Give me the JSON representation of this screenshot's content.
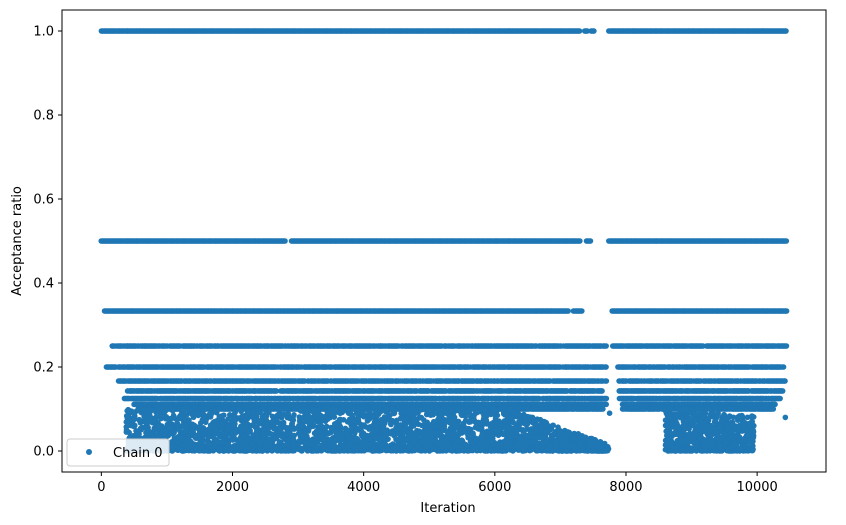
{
  "chart_data": {
    "type": "scatter",
    "xlabel": "Iteration",
    "ylabel": "Acceptance ratio",
    "xlim": [
      -600,
      11050
    ],
    "ylim": [
      -0.05,
      1.05
    ],
    "xticks": [
      0,
      2000,
      4000,
      6000,
      8000,
      10000
    ],
    "xtick_labels": [
      "0",
      "2000",
      "4000",
      "6000",
      "8000",
      "10000"
    ],
    "yticks": [
      0.0,
      0.2,
      0.4,
      0.6,
      0.8,
      1.0
    ],
    "ytick_labels": [
      "0.0",
      "0.2",
      "0.4",
      "0.6",
      "0.8",
      "1.0"
    ],
    "grid": false,
    "legend": {
      "placement": "lower-left",
      "entries": [
        "Chain 0"
      ]
    },
    "marker_color": "#1f77b4",
    "series": [
      {
        "name": "Chain 0",
        "bands": [
          {
            "y": 1.0,
            "segments": [
              [
                0,
                7300
              ],
              [
                7370,
                7420
              ],
              [
                7470,
                7520
              ],
              [
                7740,
                10450
              ]
            ]
          },
          {
            "y": 0.5,
            "segments": [
              [
                0,
                2800
              ],
              [
                2900,
                7300
              ],
              [
                7400,
                7460
              ],
              [
                7740,
                10450
              ]
            ]
          },
          {
            "y": 0.3333,
            "segments": [
              [
                50,
                7120
              ],
              [
                7200,
                7330
              ],
              [
                7790,
                10450
              ]
            ]
          },
          {
            "y": 0.25,
            "segments": [
              [
                150,
                7700
              ],
              [
                7800,
                10450
              ]
            ]
          },
          {
            "y": 0.2,
            "segments": [
              [
                80,
                7700
              ],
              [
                7880,
                10400
              ]
            ]
          },
          {
            "y": 0.1667,
            "segments": [
              [
                250,
                7700
              ],
              [
                7880,
                10440
              ]
            ]
          },
          {
            "y": 0.1429,
            "segments": [
              [
                400,
                7650
              ],
              [
                7900,
                10400
              ]
            ]
          },
          {
            "y": 0.125,
            "segments": [
              [
                350,
                7700
              ],
              [
                7900,
                10350
              ]
            ]
          },
          {
            "y": 0.1111,
            "segments": [
              [
                500,
                7700
              ],
              [
                7950,
                10300
              ]
            ]
          },
          {
            "y": 0.1,
            "segments": [
              [
                550,
                7650
              ],
              [
                7950,
                10250
              ]
            ]
          }
        ],
        "clusters": [
          {
            "x": [
              380,
              2950
            ],
            "y": [
              0.0,
              0.1
            ],
            "decay": 0.1,
            "count": 1100
          },
          {
            "x": [
              2980,
              4470
            ],
            "y": [
              0.0,
              0.1
            ],
            "decay": 0.0,
            "count": 650
          },
          {
            "x": [
              4480,
              6250
            ],
            "y": [
              0.0,
              0.1
            ],
            "decay": 0.0,
            "count": 750
          },
          {
            "x": [
              6250,
              7740
            ],
            "y": [
              0.0,
              0.1
            ],
            "decay": 1.0,
            "count": 650
          },
          {
            "x": [
              8600,
              9950
            ],
            "y": [
              0.0,
              0.1
            ],
            "decay": 0.2,
            "count": 650
          }
        ],
        "outliers": [
          {
            "x": 10430,
            "y": 0.08
          },
          {
            "x": 7750,
            "y": 0.09
          },
          {
            "x": 7620,
            "y": 0.11
          }
        ]
      }
    ]
  }
}
